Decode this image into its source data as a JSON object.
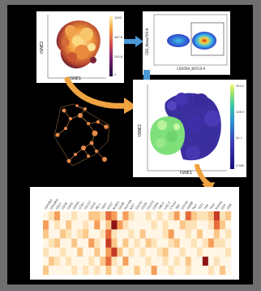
{
  "tsne_plot_1": {
    "xlabel": "tSNE1",
    "ylabel": "tSNE2",
    "colorbar_ticks": [
      "1000",
      "467.6",
      "245.6",
      "0"
    ],
    "colormap": [
      "#1a0a3c",
      "#5a1e78",
      "#b23a64",
      "#e8703a",
      "#f7c043",
      "#fcf5b0"
    ]
  },
  "gating_plot": {
    "xlabel": "CD45RA_BV510-A",
    "ylabel": "CD3_Alexa700-A"
  },
  "tsne_plot_2": {
    "xlabel": "tSNE1",
    "ylabel": "tSNE2",
    "colorbar_ticks": [
      "303.1",
      "108.9",
      "20.7",
      "0.365"
    ],
    "colormap": [
      "#1b0e7a",
      "#3a3ab4",
      "#2f8ad0",
      "#39c6a8",
      "#a0e36a",
      "#f5f87a"
    ]
  },
  "arrow_color": "#4a98d8",
  "curve_arrow_color": "#f0a341",
  "heatmap": {
    "column_labels": [
      "CD45RA",
      "CD45RO",
      "CD27",
      "CD28",
      "CD95",
      "CD62L",
      "CCR7",
      "CD127",
      "CD25",
      "PD-1",
      "TIGIT",
      "CD57",
      "KLRG1",
      "CD38",
      "HLA-DR",
      "Ki67",
      "CD161",
      "CD39",
      "CD103",
      "CD69",
      "TIM-3",
      "LAG-3",
      "CTLA4",
      "2B4",
      "CD160",
      "GZMB",
      "Perf",
      "TCF1",
      "TOX",
      "Tbet",
      "Eomes",
      "CD4",
      "CD8"
    ],
    "rows": 7,
    "palette": [
      "#fff6e6",
      "#fde2b6",
      "#fbc789",
      "#f59e5b",
      "#e66b3a",
      "#c63a26",
      "#8e1414"
    ],
    "values": [
      [
        0,
        1,
        3,
        0,
        0,
        1,
        0,
        0,
        2,
        2,
        1,
        4,
        3,
        0,
        3,
        1,
        0,
        0,
        1,
        0,
        1,
        0,
        1,
        3,
        0,
        4,
        2,
        1,
        1,
        2,
        5,
        1,
        2
      ],
      [
        3,
        0,
        1,
        0,
        2,
        0,
        0,
        1,
        0,
        3,
        0,
        2,
        6,
        3,
        1,
        0,
        0,
        0,
        0,
        1,
        0,
        1,
        0,
        0,
        2,
        1,
        1,
        0,
        0,
        1,
        4,
        2,
        0
      ],
      [
        2,
        0,
        0,
        2,
        1,
        0,
        1,
        2,
        0,
        0,
        1,
        4,
        1,
        0,
        0,
        1,
        0,
        2,
        0,
        0,
        0,
        1,
        3,
        0,
        0,
        1,
        0,
        2,
        0,
        0,
        2,
        0,
        1
      ],
      [
        0,
        1,
        2,
        0,
        0,
        2,
        0,
        0,
        3,
        1,
        0,
        5,
        2,
        0,
        2,
        0,
        1,
        0,
        2,
        1,
        0,
        0,
        1,
        2,
        0,
        0,
        1,
        0,
        1,
        3,
        1,
        1,
        0
      ],
      [
        1,
        0,
        0,
        1,
        0,
        0,
        2,
        0,
        0,
        2,
        0,
        3,
        5,
        2,
        0,
        1,
        0,
        1,
        0,
        0,
        1,
        2,
        0,
        0,
        1,
        0,
        0,
        1,
        0,
        0,
        0,
        0,
        1
      ],
      [
        0,
        2,
        1,
        0,
        1,
        0,
        0,
        0,
        1,
        0,
        2,
        4,
        1,
        0,
        3,
        0,
        0,
        0,
        1,
        0,
        0,
        1,
        0,
        1,
        0,
        2,
        0,
        0,
        6,
        0,
        1,
        0,
        0
      ],
      [
        2,
        0,
        0,
        0,
        0,
        1,
        0,
        1,
        0,
        1,
        0,
        2,
        0,
        1,
        0,
        0,
        2,
        0,
        0,
        3,
        0,
        0,
        1,
        0,
        0,
        1,
        0,
        0,
        0,
        1,
        0,
        2,
        0
      ]
    ]
  }
}
